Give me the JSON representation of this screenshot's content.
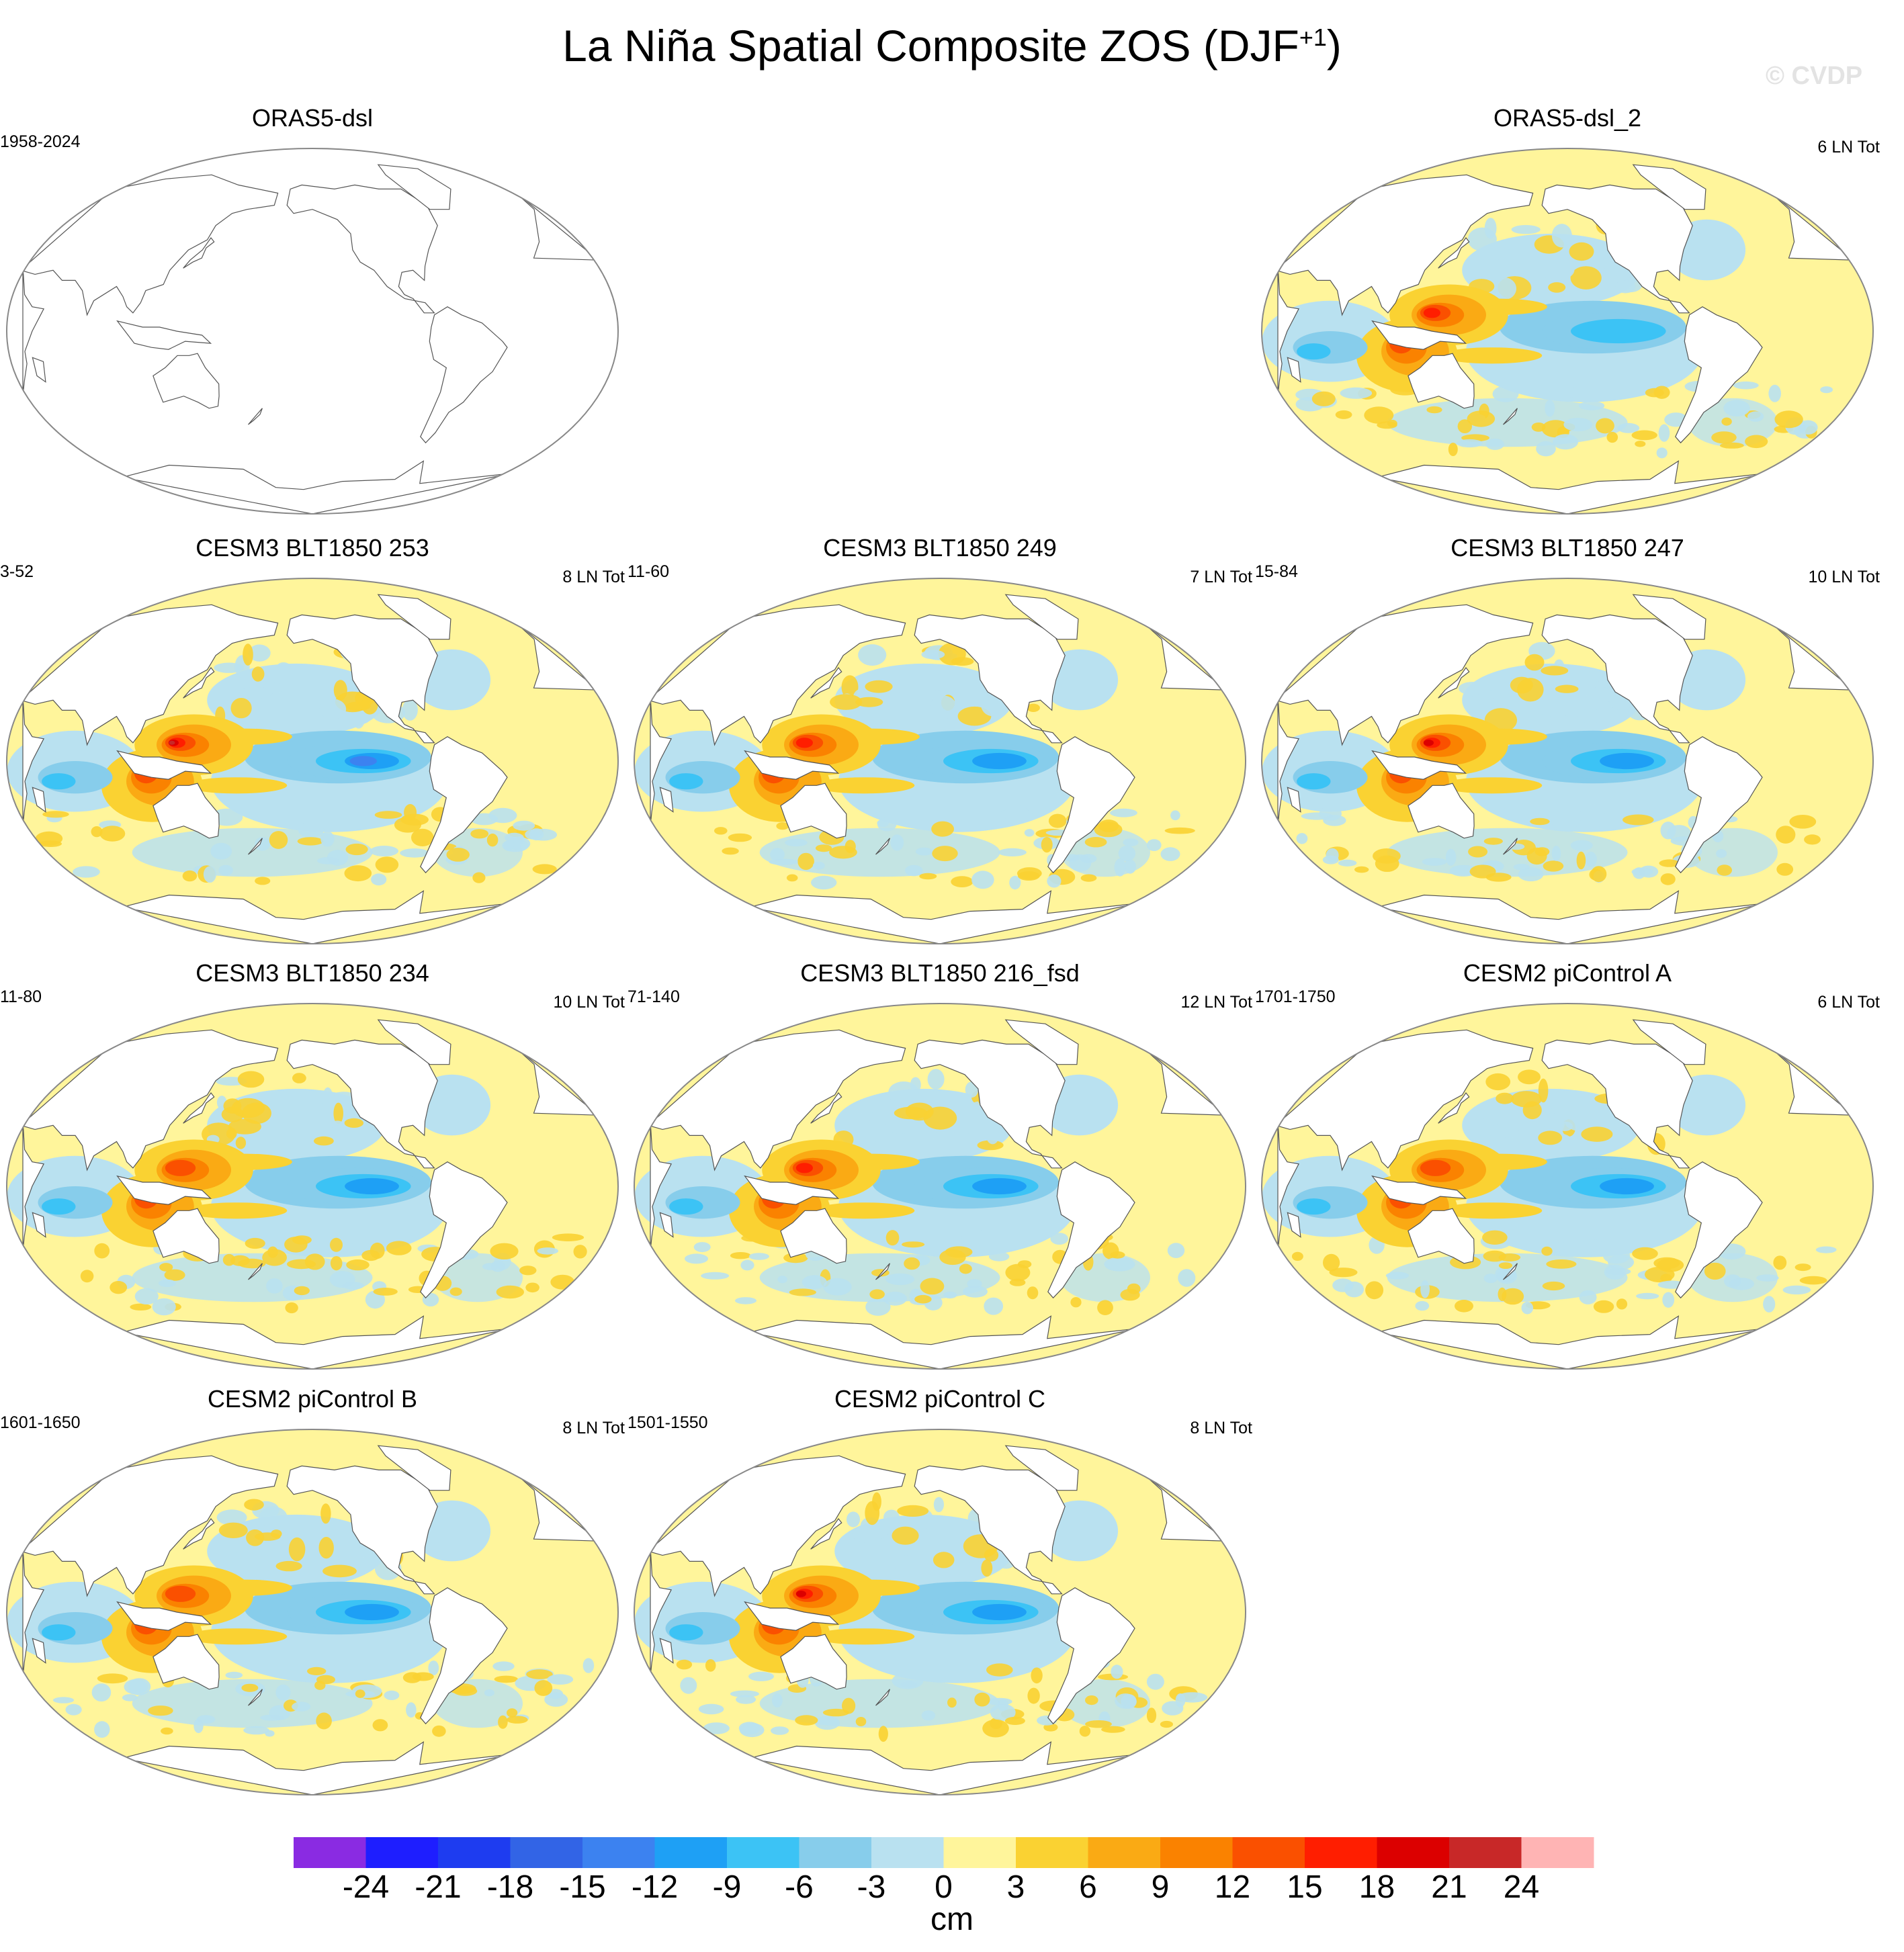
{
  "title_main": "La Niña Spatial Composite ZOS (DJF",
  "title_sup": "+1",
  "title_end": ")",
  "watermark": "© CVDP",
  "chart_data": {
    "type": "heatmap",
    "title": "La Niña Spatial Composite ZOS (DJF+1)",
    "variable": "ZOS",
    "season": "DJF+1",
    "projection": "robinson, Pacific-centered",
    "units": "cm",
    "colorbar": {
      "levels": [
        -24,
        -21,
        -18,
        -15,
        -12,
        -9,
        -6,
        -3,
        0,
        3,
        6,
        9,
        12,
        15,
        18,
        21,
        24
      ],
      "tick_labels": [
        "-24",
        "-21",
        "-18",
        "-15",
        "-12",
        "-9",
        "-6",
        "-3",
        "0",
        "3",
        "6",
        "9",
        "12",
        "15",
        "18",
        "21",
        "24"
      ],
      "colors": [
        "#8a2be2",
        "#1e1eff",
        "#1e3cf0",
        "#3264e6",
        "#3c82f0",
        "#1ea0f5",
        "#3cc3f5",
        "#87cdeb",
        "#b9e1f0",
        "#fff59b",
        "#fad232",
        "#faaa14",
        "#fa8200",
        "#fa5000",
        "#ff1e00",
        "#dc0000",
        "#c82828",
        "#ffb4b4"
      ]
    },
    "panels": [
      {
        "title": "ORAS5-dsl",
        "period": "1958-2024",
        "count": "",
        "contours": false
      },
      {
        "title": "ORAS5-dsl_2",
        "period": "",
        "count": "6 LN Tot",
        "contours": true,
        "west_pacific_peak": 15,
        "east_pacific_min": -9
      },
      {
        "title": "CESM3 BLT1850 253",
        "period": "3-52",
        "count": "8 LN Tot",
        "contours": true,
        "west_pacific_peak": 21,
        "east_pacific_min": -15
      },
      {
        "title": "CESM3 BLT1850 249",
        "period": "11-60",
        "count": "7 LN Tot",
        "contours": true,
        "west_pacific_peak": 15,
        "east_pacific_min": -12
      },
      {
        "title": "CESM3 BLT1850 247",
        "period": "15-84",
        "count": "10 LN Tot",
        "contours": true,
        "west_pacific_peak": 18,
        "east_pacific_min": -12
      },
      {
        "title": "CESM3 BLT1850 234",
        "period": "11-80",
        "count": "10 LN Tot",
        "contours": true,
        "west_pacific_peak": 12,
        "east_pacific_min": -12
      },
      {
        "title": "CESM3 BLT1850 216_fsd",
        "period": "71-140",
        "count": "12 LN Tot",
        "contours": true,
        "west_pacific_peak": 15,
        "east_pacific_min": -12
      },
      {
        "title": "CESM2 piControl A",
        "period": "1701-1750",
        "count": "6 LN Tot",
        "contours": true,
        "west_pacific_peak": 12,
        "east_pacific_min": -12
      },
      {
        "title": "CESM2 piControl B",
        "period": "1601-1650",
        "count": "8 LN Tot",
        "contours": true,
        "west_pacific_peak": 12,
        "east_pacific_min": -12
      },
      {
        "title": "CESM2 piControl C",
        "period": "1501-1550",
        "count": "8 LN Tot",
        "contours": true,
        "west_pacific_peak": 18,
        "east_pacific_min": -12
      }
    ]
  }
}
